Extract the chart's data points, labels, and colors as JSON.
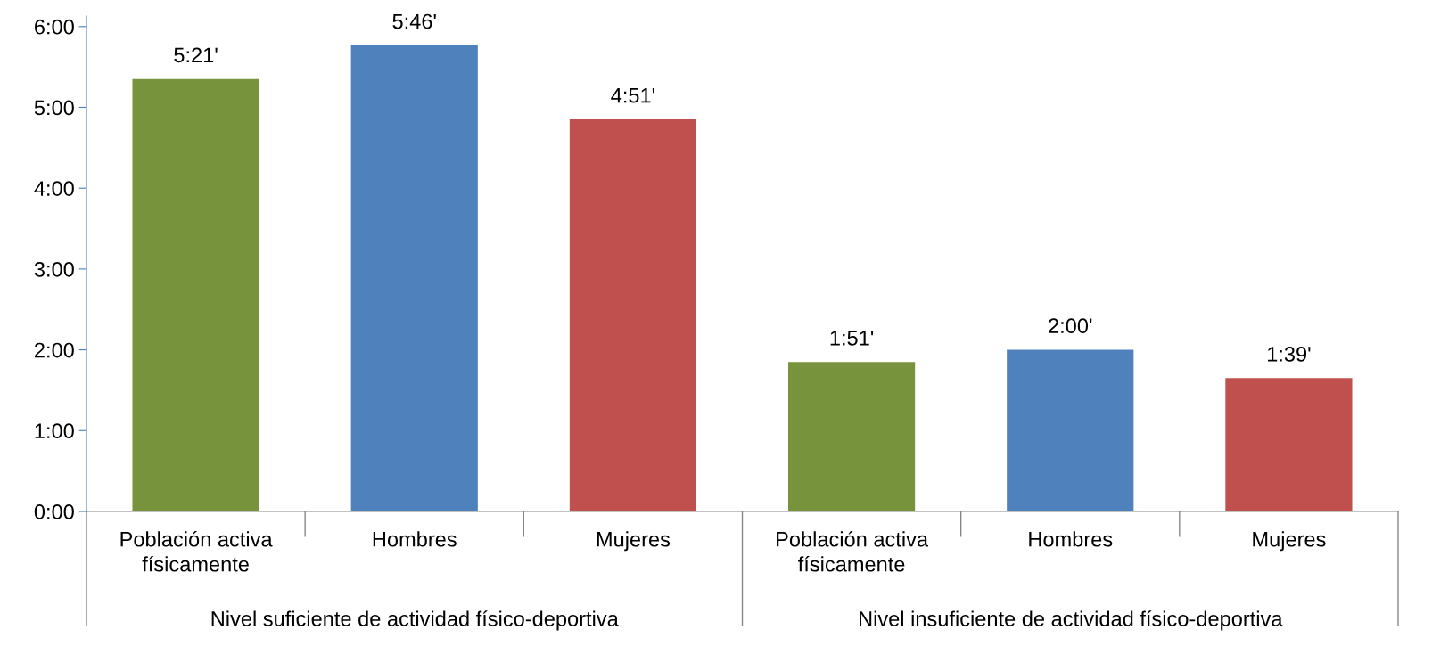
{
  "chart_data": {
    "type": "bar",
    "categories": [
      "Población activa\nfísicamente",
      "Hombres",
      "Mujeres",
      "Población activa\nfísicamente",
      "Hombres",
      "Mujeres"
    ],
    "values": [
      5.35,
      5.766667,
      4.85,
      1.85,
      2.0,
      1.65
    ],
    "colors": [
      "#77933c",
      "#4f81bd",
      "#c0504d",
      "#77933c",
      "#4f81bd",
      "#c0504d"
    ],
    "value_labels": [
      "5:21'",
      "5:46'",
      "4:51'",
      "1:51'",
      "2:00'",
      "1:39'"
    ],
    "annotations": [
      "Nivel suficiente de actividad físico-deportiva",
      "Nivel insuficiente de actividad físico-deportiva"
    ],
    "ylim": [
      0,
      6.13
    ],
    "yticks": [
      {
        "value": 0,
        "label": "0:00"
      },
      {
        "value": 1,
        "label": "1:00"
      },
      {
        "value": 2,
        "label": "2:00"
      },
      {
        "value": 3,
        "label": "3:00"
      },
      {
        "value": 4,
        "label": "4:00"
      },
      {
        "value": 5,
        "label": "5:00"
      },
      {
        "value": 6,
        "label": "6:00"
      }
    ],
    "grid": false,
    "legend": false
  }
}
